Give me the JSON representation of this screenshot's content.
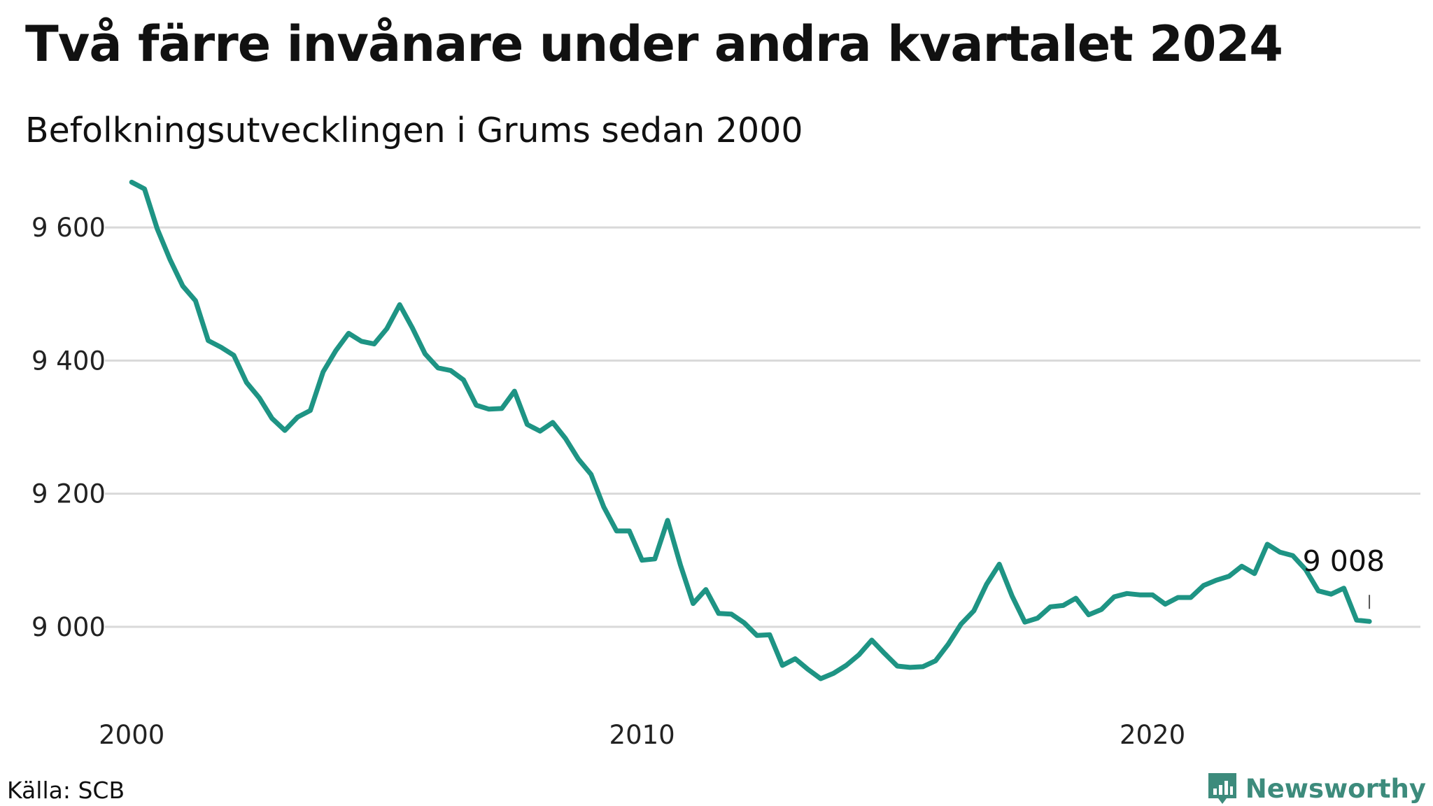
{
  "header": {
    "title": "Två färre invånare under andra kvartalet 2024",
    "subtitle": "Befolkningsutvecklingen i Grums sedan 2000"
  },
  "footer": {
    "source": "Källa: SCB",
    "brand": "Newsworthy",
    "brand_icon": "bar-chart-speech-bubble-icon"
  },
  "colors": {
    "line": "#1e9484",
    "grid": "#d9d9d9",
    "brand": "#3d8b7c"
  },
  "chart_data": {
    "type": "line",
    "title": "Två färre invånare under andra kvartalet 2024",
    "subtitle": "Befolkningsutvecklingen i Grums sedan 2000",
    "xlabel": "",
    "ylabel": "",
    "x_ticks": [
      "2000",
      "2010",
      "2020"
    ],
    "y_ticks": [
      "9 000",
      "9 200",
      "9 400",
      "9 600"
    ],
    "y_tick_values": [
      9000,
      9200,
      9400,
      9600
    ],
    "ylim": [
      8880,
      9700
    ],
    "xlim": [
      1999.75,
      2025.25
    ],
    "grid": "horizontal",
    "end_label": "9 008",
    "series": [
      {
        "x": [
          2000.0,
          2000.25,
          2000.5,
          2000.75,
          2001.0,
          2001.25,
          2001.5,
          2001.75,
          2002.0,
          2002.25,
          2002.5,
          2002.75,
          2003.0,
          2003.25,
          2003.5,
          2003.75,
          2004.0,
          2004.25,
          2004.5,
          2004.75,
          2005.0,
          2005.25,
          2005.5,
          2005.75,
          2006.0,
          2006.25,
          2006.5,
          2006.75,
          2007.0,
          2007.25,
          2007.5,
          2007.75,
          2008.0,
          2008.25,
          2008.5,
          2008.75,
          2009.0,
          2009.25,
          2009.5,
          2009.75,
          2010.0,
          2010.25,
          2010.5,
          2010.75,
          2011.0,
          2011.25,
          2011.5,
          2011.75,
          2012.0,
          2012.25,
          2012.5,
          2012.75,
          2013.0,
          2013.25,
          2013.5,
          2013.75,
          2014.0,
          2014.25,
          2014.5,
          2014.75,
          2015.0,
          2015.25,
          2015.5,
          2015.75,
          2016.0,
          2016.25,
          2016.5,
          2016.75,
          2017.0,
          2017.25,
          2017.5,
          2017.75,
          2018.0,
          2018.25,
          2018.5,
          2018.75,
          2019.0,
          2019.25,
          2019.5,
          2019.75,
          2020.0,
          2020.25,
          2020.5,
          2020.75,
          2021.0,
          2021.25,
          2021.5,
          2021.75,
          2022.0,
          2022.25,
          2022.5,
          2022.75,
          2023.0,
          2023.25,
          2023.5,
          2023.75,
          2024.0,
          2024.25
        ],
        "y": [
          9668,
          9658,
          9598,
          9552,
          9512,
          9490,
          9430,
          9420,
          9408,
          9367,
          9344,
          9313,
          9295,
          9315,
          9325,
          9383,
          9415,
          9441,
          9429,
          9425,
          9448,
          9484,
          9449,
          9410,
          9389,
          9385,
          9371,
          9333,
          9327,
          9328,
          9354,
          9304,
          9294,
          9307,
          9283,
          9252,
          9229,
          9180,
          9144,
          9144,
          9100,
          9102,
          9160,
          9093,
          9035,
          9056,
          9020,
          9019,
          9006,
          8987,
          8988,
          8942,
          8952,
          8936,
          8922,
          8930,
          8942,
          8958,
          8980,
          8960,
          8941,
          8939,
          8940,
          8949,
          8974,
          9004,
          9024,
          9064,
          9094,
          9046,
          9007,
          9013,
          9030,
          9032,
          9043,
          9018,
          9026,
          9045,
          9050,
          9048,
          9048,
          9034,
          9044,
          9044,
          9062,
          9070,
          9076,
          9091,
          9080,
          9124,
          9112,
          9107,
          9086,
          9054,
          9049,
          9058,
          9010,
          9008
        ]
      }
    ]
  }
}
